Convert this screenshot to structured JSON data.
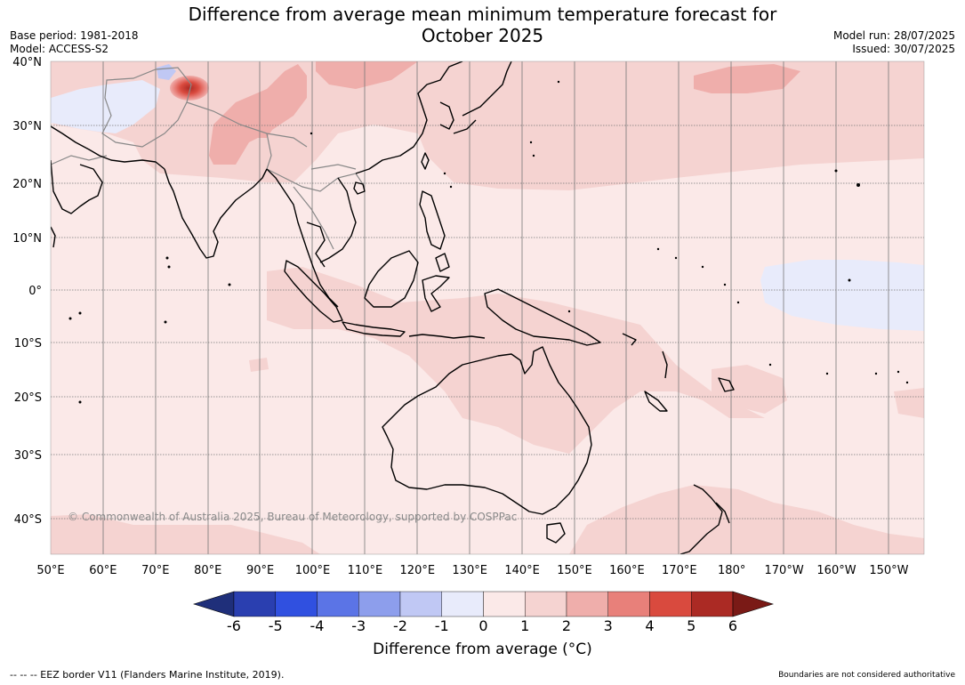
{
  "title_line1": "Difference from average mean minimum temperature forecast for",
  "title_line2": "October 2025",
  "meta_left": {
    "base_period": "Base period: 1981-2018",
    "model": "Model: ACCESS-S2"
  },
  "meta_right": {
    "model_run": "Model run: 28/07/2025",
    "issued": "Issued: 30/07/2025"
  },
  "copyright": "© Commonwealth of Australia 2025, Bureau of Meteorology, supported by COSPPac",
  "lat_labels": [
    "40°N",
    "30°N",
    "20°N",
    "10°N",
    "0°",
    "10°S",
    "20°S",
    "30°S",
    "40°S"
  ],
  "lon_labels": [
    "50°E",
    "60°E",
    "70°E",
    "80°E",
    "90°E",
    "100°E",
    "110°E",
    "120°E",
    "130°E",
    "140°E",
    "150°E",
    "160°E",
    "170°E",
    "180°",
    "170°W",
    "160°W",
    "150°W"
  ],
  "colorbar": {
    "ticks": [
      "-6",
      "-5",
      "-4",
      "-3",
      "-2",
      "-1",
      "0",
      "1",
      "2",
      "3",
      "4",
      "5",
      "6"
    ],
    "colors": [
      "#1f2f7a",
      "#2a3fb0",
      "#3050e0",
      "#5b74e6",
      "#8d9eec",
      "#c0c8f4",
      "#e8ebfb",
      "#fbe9e8",
      "#f5d3d1",
      "#efaeab",
      "#e8807a",
      "#d94a3e",
      "#ab2a24",
      "#7a1a16"
    ],
    "label": "Difference from average (°C)"
  },
  "footer_left": "--  --  -- EEZ border V11 (Flanders Marine Institute, 2019).",
  "footer_right": "Boundaries are not considered authoritative",
  "map_colors": {
    "background": "#fbe9e8",
    "warm1": "#f5d3d1",
    "warm2": "#efaeab",
    "warm3": "#e8807a",
    "warm4": "#d94a3e",
    "cool1": "#e8ebfb",
    "cool2": "#c0c8f4",
    "coast": "#000000",
    "border": "#888888",
    "grid": "#777777"
  }
}
